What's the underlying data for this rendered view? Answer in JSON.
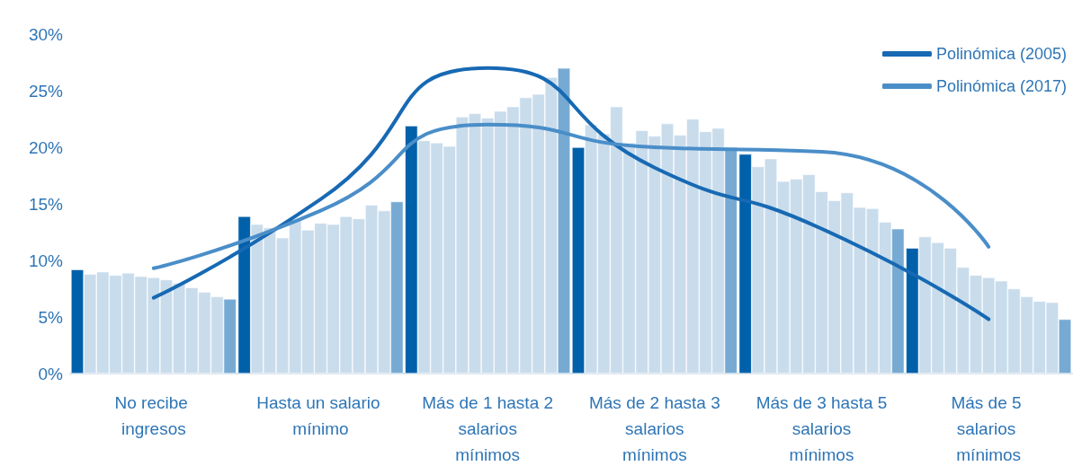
{
  "chart_data": {
    "type": "bar",
    "categories": [
      "No recibe ingresos",
      "Hasta un salario mínimo",
      "Más de 1 hasta 2 salarios mínimos",
      "Más de 2 hasta 3 salarios mínimos",
      "Más de 3 hasta 5 salarios mínimos",
      "Más de 5 salarios mínimos"
    ],
    "ylim": [
      0,
      30
    ],
    "yticks": [
      {
        "value": 0,
        "label": "0%"
      },
      {
        "value": 5,
        "label": "5%"
      },
      {
        "value": 10,
        "label": "10%"
      },
      {
        "value": 15,
        "label": "15%"
      },
      {
        "value": 20,
        "label": "20%"
      },
      {
        "value": 25,
        "label": "25%"
      },
      {
        "value": 30,
        "label": "30%"
      }
    ],
    "grid": false,
    "legend": "top right",
    "series": [
      {
        "color": "#0060aa",
        "values": [
          9.2,
          13.9,
          21.9,
          20.0,
          19.4,
          11.1
        ]
      },
      {
        "color": "#c9dcec",
        "values": [
          8.8,
          13.2,
          20.6,
          22.0,
          18.3,
          12.1
        ]
      },
      {
        "color": "#c9dcec",
        "values": [
          9.0,
          12.9,
          20.4,
          21.2,
          19.0,
          11.6
        ]
      },
      {
        "color": "#c9dcec",
        "values": [
          8.7,
          12.0,
          20.1,
          23.6,
          17.0,
          11.1
        ]
      },
      {
        "color": "#c9dcec",
        "values": [
          8.9,
          13.6,
          22.7,
          20.4,
          17.2,
          9.4
        ]
      },
      {
        "color": "#c9dcec",
        "values": [
          8.6,
          12.7,
          23.0,
          21.5,
          17.6,
          8.7
        ]
      },
      {
        "color": "#c9dcec",
        "values": [
          8.5,
          13.3,
          22.6,
          21.0,
          16.1,
          8.5
        ]
      },
      {
        "color": "#c9dcec",
        "values": [
          8.3,
          13.2,
          23.2,
          22.1,
          15.3,
          8.2
        ]
      },
      {
        "color": "#c9dcec",
        "values": [
          8.0,
          13.9,
          23.6,
          21.1,
          16.0,
          7.5
        ]
      },
      {
        "color": "#c9dcec",
        "values": [
          7.6,
          13.7,
          24.4,
          22.5,
          14.7,
          6.8
        ]
      },
      {
        "color": "#c9dcec",
        "values": [
          7.2,
          14.9,
          24.7,
          21.4,
          14.6,
          6.4
        ]
      },
      {
        "color": "#c9dcec",
        "values": [
          6.8,
          14.4,
          26.2,
          21.7,
          13.4,
          6.3
        ]
      },
      {
        "color": "#77aad3",
        "values": [
          6.6,
          15.2,
          27.0,
          20.0,
          12.8,
          4.8
        ]
      },
      {
        "type": "line",
        "name": "Polinómica (2005)",
        "color": "#1769b3",
        "marker": "none",
        "line_style": "solid",
        "values": [
          6.7,
          15.4,
          27.0,
          18.2,
          12.8,
          4.8
        ]
      },
      {
        "type": "line",
        "name": "Polinómica (2017)",
        "color": "#4a8ec8",
        "marker": "none",
        "line_style": "solid",
        "values": [
          9.3,
          14.4,
          22.0,
          20.0,
          19.6,
          11.2
        ]
      }
    ]
  }
}
